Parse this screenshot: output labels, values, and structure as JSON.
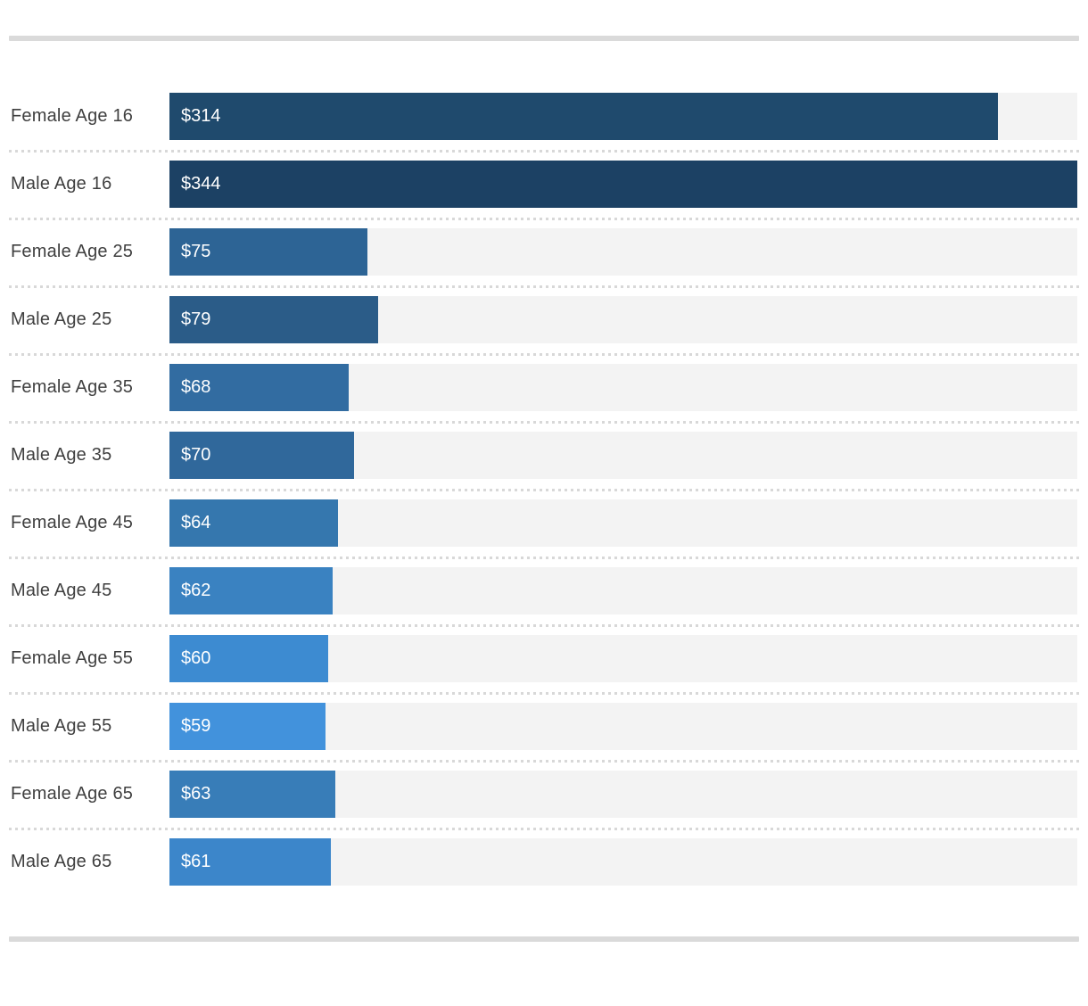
{
  "chart_data": {
    "type": "bar",
    "orientation": "horizontal",
    "title": "",
    "xlabel": "",
    "ylabel": "",
    "grid": false,
    "legend": false,
    "xlim": [
      0,
      344
    ],
    "categories": [
      "Female Age 16",
      "Male Age 16",
      "Female Age 25",
      "Male Age 25",
      "Female Age 35",
      "Male Age 35",
      "Female Age 45",
      "Male Age 45",
      "Female Age 55",
      "Male Age 55",
      "Female Age 65",
      "Male Age 65"
    ],
    "values": [
      314,
      344,
      75,
      79,
      68,
      70,
      64,
      62,
      60,
      59,
      63,
      61
    ],
    "value_labels": [
      "$314",
      "$344",
      "$75",
      "$79",
      "$68",
      "$70",
      "$64",
      "$62",
      "$60",
      "$59",
      "$63",
      "$61"
    ],
    "bar_colors": [
      "#1F4A6D",
      "#1C4164",
      "#2D6495",
      "#2B5C88",
      "#326CA1",
      "#30689B",
      "#3577AE",
      "#3A82C1",
      "#3D8BD1",
      "#4292DC",
      "#387DB8",
      "#3C86CA"
    ]
  },
  "styles": {
    "track_color": "#f3f3f3",
    "separator_color": "#d8d8d8",
    "rule_color": "#dadada",
    "label_color": "#3f3f3f",
    "value_text_color": "#ffffff"
  }
}
